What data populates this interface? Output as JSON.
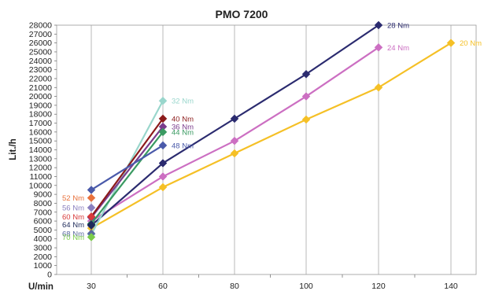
{
  "chart_data": {
    "type": "line",
    "title": "PMO 7200",
    "xlabel": "U/min",
    "ylabel": "Lit./h",
    "x_categories": [
      "30",
      "60",
      "80",
      "100",
      "120",
      "140"
    ],
    "ylim": [
      0,
      28000
    ],
    "y_ticks": [
      "0",
      "1000",
      "2000",
      "3000",
      "4000",
      "5000",
      "6000",
      "7000",
      "8000",
      "9000",
      "10000",
      "11000",
      "12000",
      "13000",
      "14000",
      "15000",
      "16000",
      "17000",
      "18000",
      "19000",
      "20000",
      "21000",
      "22000",
      "23000",
      "24000",
      "25000",
      "26000",
      "27000",
      "28000"
    ],
    "grid": "vertical",
    "series": [
      {
        "name": "20 Nm",
        "color": "#f5c026",
        "x": [
          "30",
          "60",
          "80",
          "100",
          "120",
          "140"
        ],
        "values": [
          5200,
          9800,
          13600,
          17400,
          21000,
          26000
        ]
      },
      {
        "name": "24 Nm",
        "color": "#cc6fc2",
        "x": [
          "30",
          "60",
          "80",
          "100",
          "120"
        ],
        "values": [
          6000,
          11000,
          15000,
          20000,
          25500
        ]
      },
      {
        "name": "28 Nm",
        "color": "#2b2b6f",
        "x": [
          "30",
          "60",
          "80",
          "100",
          "120"
        ],
        "values": [
          5500,
          12500,
          17500,
          22500,
          28000
        ]
      },
      {
        "name": "32 Nm",
        "color": "#99d6cc",
        "x": [
          "30",
          "60"
        ],
        "values": [
          4500,
          19500
        ]
      },
      {
        "name": "36 Nm",
        "color": "#7a3b8c",
        "x": [
          "30",
          "60"
        ],
        "values": [
          6400,
          16600
        ]
      },
      {
        "name": "40 Nm",
        "color": "#8b1a1a",
        "x": [
          "30",
          "60"
        ],
        "values": [
          6500,
          17500
        ]
      },
      {
        "name": "44 Nm",
        "color": "#3a9a62",
        "x": [
          "30",
          "60"
        ],
        "values": [
          5700,
          16000
        ]
      },
      {
        "name": "48 Nm",
        "color": "#4a5aaa",
        "x": [
          "30",
          "60"
        ],
        "values": [
          9500,
          14500
        ]
      },
      {
        "name": "52 Nm",
        "color": "#e8713c",
        "x": [
          "30"
        ],
        "values": [
          8600
        ]
      },
      {
        "name": "56 Nm",
        "color": "#8a7fbf",
        "x": [
          "30"
        ],
        "values": [
          7500
        ]
      },
      {
        "name": "60 Nm",
        "color": "#d83a3a",
        "x": [
          "30"
        ],
        "values": [
          6500
        ]
      },
      {
        "name": "64 Nm",
        "color": "#1e2a5a",
        "x": [
          "30"
        ],
        "values": [
          5600
        ]
      },
      {
        "name": "68 Nm",
        "color": "#5a6aa0",
        "x": [
          "30"
        ],
        "values": [
          4600
        ]
      },
      {
        "name": "70 Nm",
        "color": "#7acc4a",
        "x": [
          "30"
        ],
        "values": [
          4200
        ]
      }
    ]
  }
}
